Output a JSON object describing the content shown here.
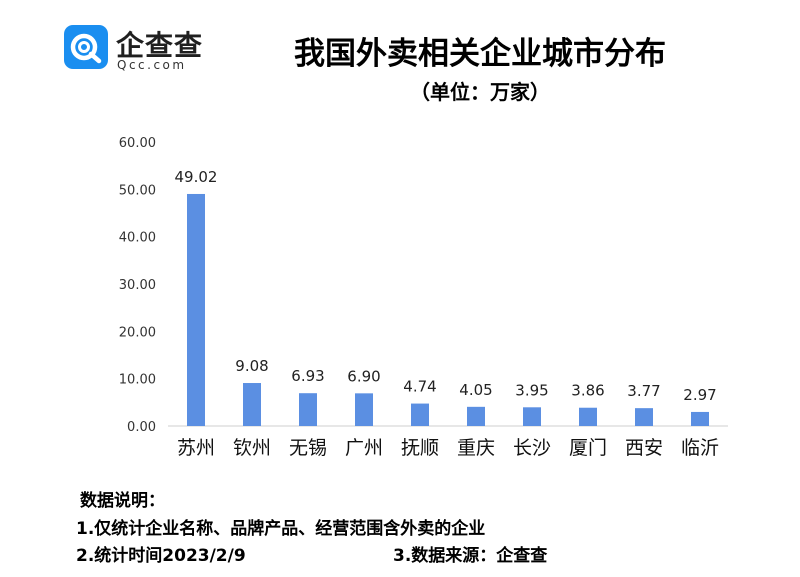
{
  "logo": {
    "name": "企查查",
    "domain": "Qcc.com",
    "icon": "qcc-logo-icon"
  },
  "title": "我国外卖相关企业城市分布",
  "unit_note": "（单位：万家）",
  "colors": {
    "bar": "#5b8fe2",
    "logo_blue": "#1a8ef0",
    "axis": "#cfcfcf"
  },
  "chart_data": {
    "type": "bar",
    "title": "我国外卖相关企业城市分布",
    "unit": "万家",
    "xlabel": "",
    "ylabel": "",
    "categories": [
      "苏州",
      "钦州",
      "无锡",
      "广州",
      "抚顺",
      "重庆",
      "长沙",
      "厦门",
      "西安",
      "临沂"
    ],
    "values": [
      49.02,
      9.08,
      6.93,
      6.9,
      4.74,
      4.05,
      3.95,
      3.86,
      3.77,
      2.97
    ],
    "value_labels": [
      "49.02",
      "9.08",
      "6.93",
      "6.90",
      "4.74",
      "4.05",
      "3.95",
      "3.86",
      "3.77",
      "2.97"
    ],
    "ylim": [
      0,
      60
    ],
    "yticks": [
      "0.00",
      "10.00",
      "20.00",
      "30.00",
      "40.00",
      "50.00",
      "60.00"
    ],
    "grid": false,
    "legend": "none"
  },
  "notes": {
    "heading": "数据说明：",
    "line1": "1.仅统计企业名称、品牌产品、经营范围含外卖的企业",
    "line2": "2.统计时间2023/2/9",
    "line3": "3.数据来源：企查查"
  }
}
